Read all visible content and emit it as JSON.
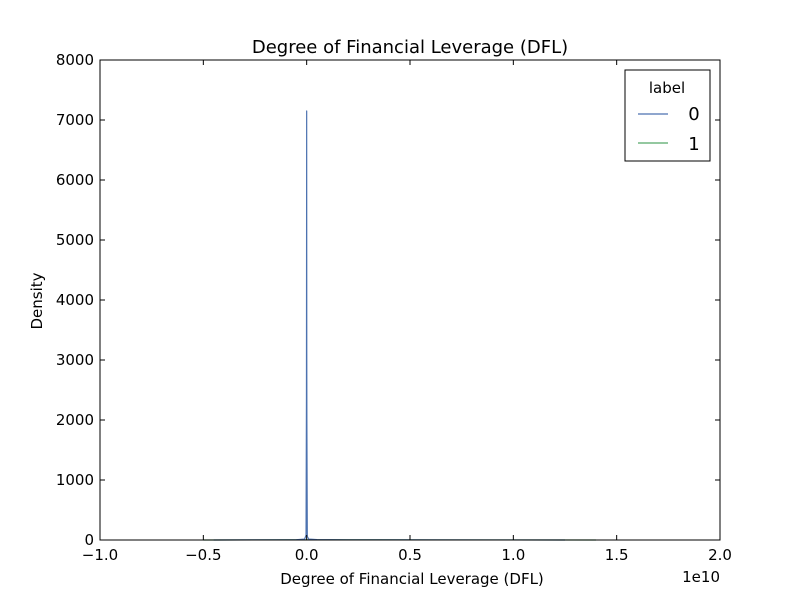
{
  "chart_data": {
    "type": "line",
    "title": "Degree of Financial Leverage (DFL)",
    "xlabel": "Degree of Financial Leverage (DFL)",
    "ylabel": "Density",
    "x_offset_label": "1e10",
    "xlim": [
      -1.0,
      2.0
    ],
    "ylim": [
      0,
      8000
    ],
    "x_ticks": [
      -1.0,
      -0.5,
      0.0,
      0.5,
      1.0,
      1.5,
      2.0
    ],
    "x_tick_labels": [
      "−1.0",
      "−0.5",
      "0.0",
      "0.5",
      "1.0",
      "1.5",
      "2.0"
    ],
    "y_ticks": [
      0,
      1000,
      2000,
      3000,
      4000,
      5000,
      6000,
      7000,
      8000
    ],
    "y_tick_labels": [
      "0",
      "1000",
      "2000",
      "3000",
      "4000",
      "5000",
      "6000",
      "7000",
      "8000"
    ],
    "grid": false,
    "legend": {
      "title": "label",
      "placement": "top-right"
    },
    "series": [
      {
        "name": "0",
        "color": "#4c72b0",
        "x": [
          -0.45,
          -0.2,
          -0.05,
          -0.01,
          -0.003,
          -0.001,
          0.0,
          0.0005,
          0.001,
          0.003,
          0.01,
          0.05,
          0.2,
          0.5,
          0.9,
          1.25
        ],
        "y": [
          0,
          2,
          5,
          15,
          80,
          2400,
          7150,
          3100,
          2000,
          60,
          15,
          6,
          3,
          2,
          1,
          0
        ]
      },
      {
        "name": "1",
        "color": "#55a868",
        "x": [
          -0.5,
          -0.3,
          -0.1,
          0.0,
          0.1,
          0.3,
          0.6,
          1.0,
          1.4
        ],
        "y": [
          0,
          1,
          2,
          3,
          2,
          2,
          1,
          1,
          0
        ]
      }
    ]
  }
}
